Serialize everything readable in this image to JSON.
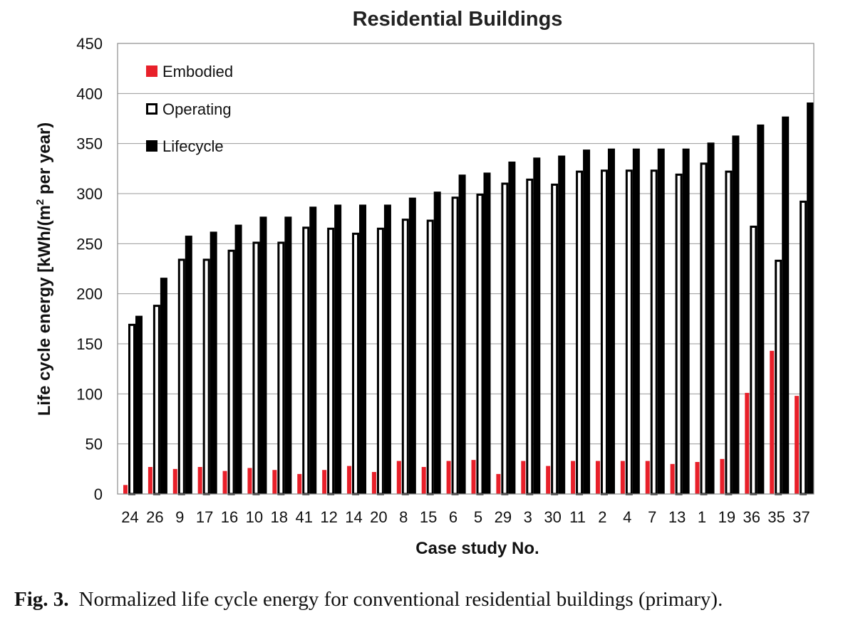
{
  "chart_data": {
    "type": "bar",
    "title": "Residential Buildings",
    "xlabel": "Case study No.",
    "ylabel": "Life cycle energy [kWh/(m² per year)",
    "ylim": [
      0,
      450
    ],
    "yticks": [
      0,
      50,
      100,
      150,
      200,
      250,
      300,
      350,
      400,
      450
    ],
    "grid": true,
    "legend_position": "top-left",
    "categories": [
      "24",
      "26",
      "9",
      "17",
      "16",
      "10",
      "18",
      "41",
      "12",
      "14",
      "20",
      "8",
      "15",
      "6",
      "5",
      "29",
      "3",
      "30",
      "11",
      "2",
      "4",
      "7",
      "13",
      "1",
      "19",
      "36",
      "35",
      "37"
    ],
    "series": [
      {
        "name": "Embodied",
        "color": "#e8202a",
        "style": "filled",
        "values": [
          9,
          27,
          25,
          27,
          23,
          26,
          24,
          20,
          24,
          28,
          22,
          33,
          27,
          33,
          34,
          20,
          33,
          28,
          33,
          33,
          33,
          33,
          30,
          32,
          35,
          101,
          143,
          98
        ]
      },
      {
        "name": "Operating",
        "color": "#000000",
        "style": "outline",
        "values": [
          170,
          189,
          235,
          235,
          244,
          252,
          252,
          267,
          266,
          261,
          266,
          275,
          274,
          297,
          300,
          311,
          315,
          310,
          323,
          324,
          324,
          324,
          320,
          331,
          323,
          268,
          234,
          293
        ]
      },
      {
        "name": "Lifecycle",
        "color": "#000000",
        "style": "filled",
        "values": [
          178,
          216,
          258,
          262,
          269,
          277,
          277,
          287,
          289,
          289,
          289,
          296,
          302,
          319,
          321,
          332,
          336,
          338,
          344,
          345,
          345,
          345,
          345,
          351,
          358,
          369,
          377,
          391
        ]
      }
    ]
  },
  "caption": {
    "label": "Fig. 3.",
    "text": "Normalized life cycle energy for conventional residential buildings (primary)."
  }
}
